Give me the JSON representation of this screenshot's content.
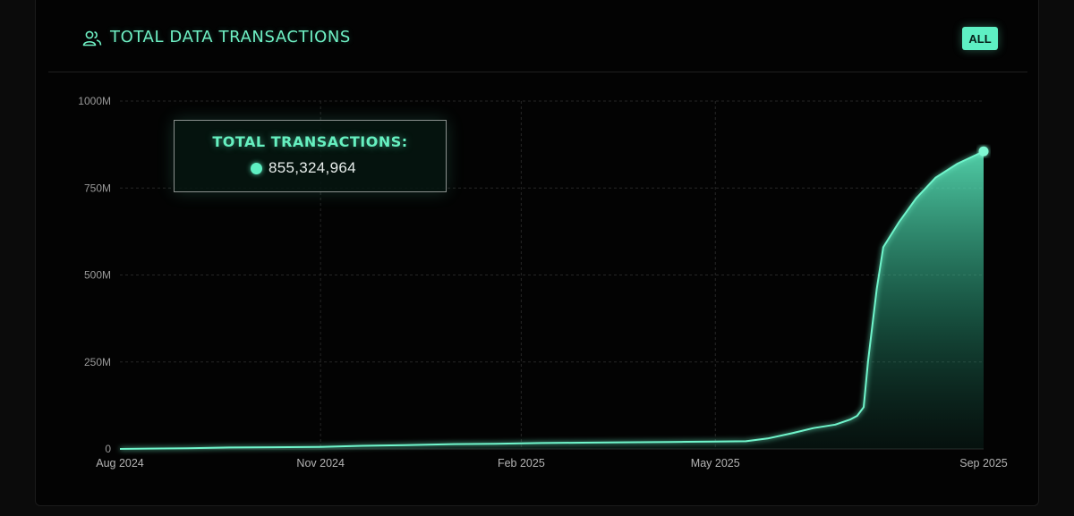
{
  "header": {
    "title": "TOTAL DATA TRANSACTIONS",
    "icon": "users-icon",
    "range_button": "ALL"
  },
  "tooltip": {
    "title": "TOTAL TRANSACTIONS:",
    "value": "855,324,964"
  },
  "colors": {
    "accent": "#5ef0c3",
    "background": "#030303",
    "grid": "#2a2a2a",
    "axis_text": "#9a9a9a"
  },
  "chart_data": {
    "type": "area",
    "x_tick_labels": [
      "Aug 2024",
      "Nov 2024",
      "Feb 2025",
      "May 2025",
      "Sep 2025"
    ],
    "y_tick_labels": [
      "0",
      "250M",
      "500M",
      "750M",
      "1000M"
    ],
    "y_tick_values": [
      0,
      250000000,
      500000000,
      750000000,
      1000000000
    ],
    "ylim": [
      0,
      1000000000
    ],
    "xlim": [
      "2024-08-01",
      "2025-09-01"
    ],
    "grid": true,
    "series": [
      {
        "x": [
          "2024-08-01",
          "2024-08-15",
          "2024-09-01",
          "2024-09-20",
          "2024-10-10",
          "2024-11-01",
          "2024-11-20",
          "2024-12-10",
          "2025-01-01",
          "2025-01-20",
          "2025-02-10",
          "2025-03-01",
          "2025-03-20",
          "2025-04-10",
          "2025-05-01",
          "2025-05-15",
          "2025-05-25",
          "2025-06-05",
          "2025-06-15",
          "2025-06-25",
          "2025-07-02",
          "2025-07-05",
          "2025-07-08",
          "2025-07-10",
          "2025-07-14",
          "2025-07-17",
          "2025-07-24",
          "2025-08-01",
          "2025-08-10",
          "2025-08-20",
          "2025-09-01"
        ],
        "y": [
          0,
          1000000,
          2000000,
          4000000,
          5000000,
          6000000,
          9000000,
          11000000,
          14000000,
          15000000,
          17000000,
          18000000,
          19000000,
          20000000,
          21000000,
          22000000,
          30000000,
          45000000,
          60000000,
          70000000,
          85000000,
          95000000,
          120000000,
          250000000,
          460000000,
          580000000,
          650000000,
          720000000,
          780000000,
          820000000,
          855324964
        ]
      }
    ],
    "highlight_point": {
      "x": "2025-09-01",
      "y": 855324964
    }
  }
}
